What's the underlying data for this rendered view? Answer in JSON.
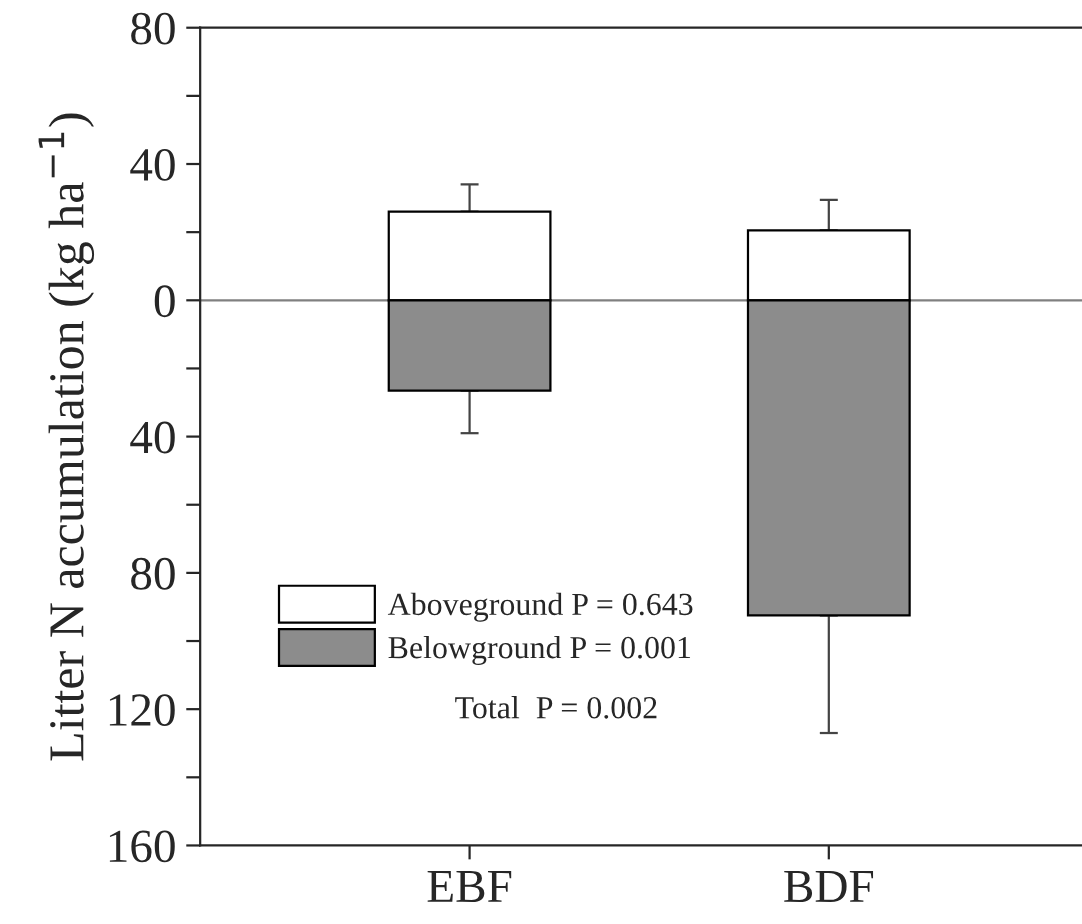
{
  "chart_data": {
    "type": "bar",
    "ylabel": "Litter N accumulation (kg ha$^{−1}$)",
    "categories": [
      "EBF",
      "BDF"
    ],
    "stacked": true,
    "series": [
      {
        "name": "Aboveground P = 0.643",
        "color": "#ffffff",
        "values": [
          26,
          20.5
        ],
        "errors": [
          [
            26,
            34
          ],
          [
            20.5,
            29.5
          ]
        ]
      },
      {
        "name": "Belowground P = 0.001",
        "color": "#8c8c8c",
        "values": [
          -26.5,
          -92.5
        ],
        "errors": [
          [
            -39,
            -26.5
          ],
          [
            -127,
            -92.5
          ]
        ]
      }
    ],
    "annotations": [
      "Total  P = 0.002"
    ],
    "ref_lines": [
      {
        "axis": "y",
        "value": 0,
        "color": "#808080"
      }
    ],
    "ylim": [
      -160,
      80
    ],
    "yticks": [
      {
        "value": -160,
        "label": "160"
      },
      {
        "value": -140,
        "label": null
      },
      {
        "value": -120,
        "label": "120"
      },
      {
        "value": -100,
        "label": null
      },
      {
        "value": -80,
        "label": "80"
      },
      {
        "value": -60,
        "label": null
      },
      {
        "value": -40,
        "label": "40"
      },
      {
        "value": -20,
        "label": null
      },
      0,
      {
        "value": 20,
        "label": null
      },
      40,
      {
        "value": 60,
        "label": null
      },
      80
    ],
    "grid": false,
    "legend": "bottom left"
  }
}
